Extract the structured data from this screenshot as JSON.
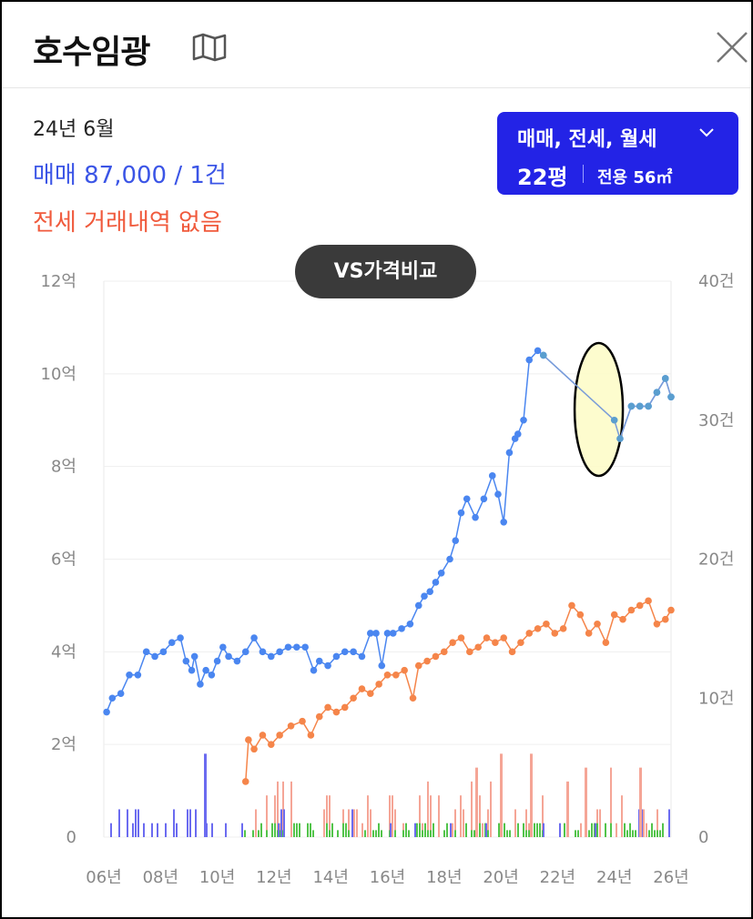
{
  "header": {
    "title": "호수임광"
  },
  "summary": {
    "period": "24년 6월",
    "sale": "매매 87,000 / 1건",
    "jeonse": "전세 거래내역 없음"
  },
  "filter": {
    "types": "매매, 전세, 월세",
    "pyeong": "22평",
    "area": "전용 56㎡"
  },
  "compare_button": "VS가격비교",
  "colors": {
    "sale": "#4a86f0",
    "jeonse": "#f5854a",
    "vol_sale": "#6b6bf0",
    "vol_jeonse": "#f5a596",
    "vol_rent": "#52c44a",
    "highlight": "#fdfbc6"
  },
  "chart_data": {
    "type": "line",
    "x_ticks": [
      "06년",
      "08년",
      "10년",
      "12년",
      "14년",
      "16년",
      "18년",
      "20년",
      "22년",
      "24년",
      "26년"
    ],
    "y_left_ticks": [
      "0",
      "2억",
      "4억",
      "6억",
      "8억",
      "10억",
      "12억"
    ],
    "y_right_ticks": [
      "0",
      "10건",
      "20건",
      "30건",
      "40건"
    ],
    "y_left_range": [
      0,
      12
    ],
    "y_right_range": [
      0,
      40
    ],
    "x_range": [
      2006,
      2026
    ],
    "grid": true,
    "series": [
      {
        "key": "sale",
        "x": [
          2006.1,
          2006.3,
          2006.6,
          2006.9,
          2007.2,
          2007.5,
          2007.8,
          2008.1,
          2008.4,
          2008.7,
          2008.9,
          2009.1,
          2009.2,
          2009.4,
          2009.6,
          2009.8,
          2010.0,
          2010.2,
          2010.4,
          2010.7,
          2011.0,
          2011.3,
          2011.6,
          2011.9,
          2012.2,
          2012.5,
          2012.8,
          2013.1,
          2013.4,
          2013.6,
          2013.9,
          2014.2,
          2014.5,
          2014.8,
          2015.1,
          2015.4,
          2015.6,
          2015.8,
          2016.0,
          2016.2,
          2016.5,
          2016.8,
          2017.1,
          2017.3,
          2017.5,
          2017.7,
          2017.9,
          2018.2,
          2018.4,
          2018.6,
          2018.8,
          2019.1,
          2019.4,
          2019.7,
          2019.9,
          2020.1,
          2020.3,
          2020.5,
          2020.6,
          2020.8,
          2021.0,
          2021.3,
          2021.5,
          2024.0,
          2024.2,
          2024.6,
          2024.9,
          2025.2,
          2025.5,
          2025.8,
          2026.0
        ],
        "y": [
          2.7,
          3.0,
          3.1,
          3.5,
          3.5,
          4.0,
          3.9,
          4.0,
          4.2,
          4.3,
          3.8,
          3.6,
          3.9,
          3.3,
          3.6,
          3.5,
          3.8,
          4.1,
          3.9,
          3.8,
          4.0,
          4.3,
          4.0,
          3.9,
          4.0,
          4.1,
          4.1,
          4.1,
          3.6,
          3.8,
          3.7,
          3.9,
          4.0,
          4.0,
          3.9,
          4.4,
          4.4,
          3.7,
          4.4,
          4.4,
          4.5,
          4.6,
          5.0,
          5.2,
          5.3,
          5.5,
          5.7,
          6.0,
          6.4,
          7.0,
          7.3,
          6.9,
          7.3,
          7.8,
          7.4,
          6.8,
          8.3,
          8.6,
          8.7,
          9.0,
          10.3,
          10.5,
          10.4,
          9.0,
          8.6,
          9.3,
          9.3,
          9.3,
          9.6,
          9.9,
          9.5
        ]
      },
      {
        "key": "jeonse",
        "x": [
          2011.0,
          2011.1,
          2011.3,
          2011.6,
          2011.9,
          2012.2,
          2012.6,
          2013.0,
          2013.3,
          2013.6,
          2013.9,
          2014.2,
          2014.5,
          2014.8,
          2015.1,
          2015.4,
          2015.7,
          2016.0,
          2016.3,
          2016.6,
          2016.9,
          2017.1,
          2017.4,
          2017.7,
          2018.0,
          2018.3,
          2018.6,
          2018.9,
          2019.2,
          2019.5,
          2019.8,
          2020.1,
          2020.4,
          2020.7,
          2021.0,
          2021.3,
          2021.6,
          2021.9,
          2022.2,
          2022.5,
          2022.8,
          2023.1,
          2023.4,
          2023.7,
          2024.0,
          2024.3,
          2024.6,
          2024.9,
          2025.2,
          2025.5,
          2025.8,
          2026.0
        ],
        "y": [
          1.2,
          2.1,
          1.9,
          2.2,
          2.0,
          2.2,
          2.4,
          2.5,
          2.2,
          2.6,
          2.8,
          2.7,
          2.8,
          3.0,
          3.2,
          3.1,
          3.3,
          3.5,
          3.5,
          3.6,
          3.0,
          3.7,
          3.8,
          3.9,
          4.0,
          4.2,
          4.3,
          4.0,
          4.1,
          4.3,
          4.2,
          4.3,
          4.0,
          4.2,
          4.4,
          4.5,
          4.6,
          4.4,
          4.5,
          5.0,
          4.8,
          4.4,
          4.6,
          4.2,
          4.8,
          4.7,
          4.9,
          5.0,
          5.1,
          4.6,
          4.7,
          4.9
        ]
      }
    ],
    "highlight_period": [
      2022.6,
      2024.3
    ]
  }
}
